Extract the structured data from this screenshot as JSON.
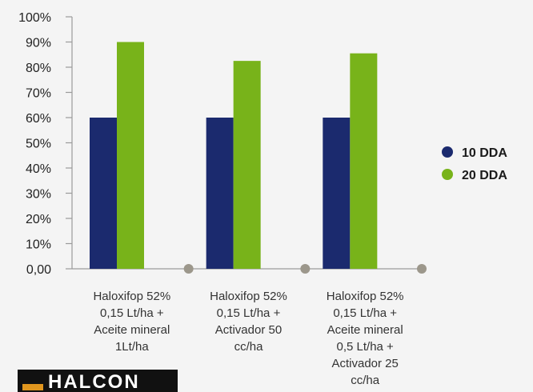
{
  "chart_data": {
    "type": "bar",
    "categories": [
      [
        "Haloxifop 52%",
        "0,15 Lt/ha +",
        "Aceite mineral",
        "1Lt/ha"
      ],
      [
        "Haloxifop 52%",
        "0,15 Lt/ha +",
        "Activador 50",
        "cc/ha"
      ],
      [
        "Haloxifop 52%",
        "0,15 Lt/ha +",
        "Aceite mineral",
        "0,5 Lt/ha +",
        "Activador 25",
        "cc/ha"
      ]
    ],
    "series": [
      {
        "name": "10 DDA",
        "values": [
          60,
          60,
          60
        ],
        "color": "#1b2a6e"
      },
      {
        "name": "20 DDA",
        "values": [
          90,
          82.5,
          85.5
        ],
        "color": "#78b31a"
      }
    ],
    "y_ticks": [
      "0,00",
      "10%",
      "20%",
      "30%",
      "40%",
      "50%",
      "60%",
      "70%",
      "80%",
      "90%",
      "100%"
    ],
    "ylim": [
      0,
      100
    ],
    "grid": false,
    "legend_position": "right"
  },
  "logo": {
    "text": "HALCON"
  }
}
